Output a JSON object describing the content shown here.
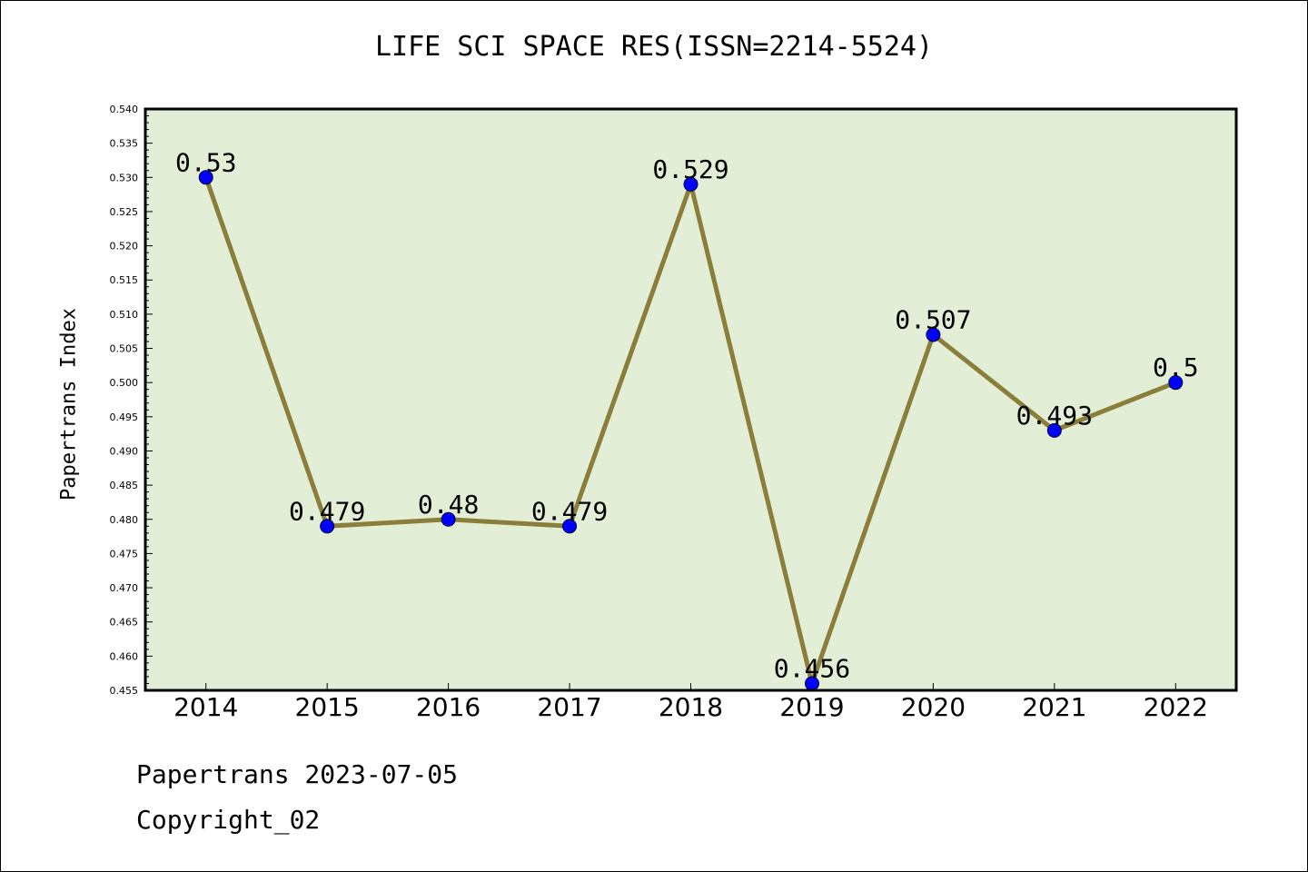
{
  "chart_data": {
    "type": "line",
    "title": "LIFE SCI SPACE RES(ISSN=2214-5524)",
    "xlabel": "",
    "ylabel": "Papertrans Index",
    "categories": [
      "2014",
      "2015",
      "2016",
      "2017",
      "2018",
      "2019",
      "2020",
      "2021",
      "2022"
    ],
    "series": [
      {
        "values": [
          0.53,
          0.479,
          0.48,
          0.479,
          0.529,
          0.456,
          0.507,
          0.493,
          0.5
        ],
        "labels": [
          "0.53",
          "0.479",
          "0.48",
          "0.479",
          "0.529",
          "0.456",
          "0.507",
          "0.493",
          "0.5"
        ]
      }
    ],
    "ylim": [
      0.455,
      0.54
    ],
    "yticks": [
      "0.455",
      "0.460",
      "0.465",
      "0.470",
      "0.475",
      "0.480",
      "0.485",
      "0.490",
      "0.495",
      "0.500",
      "0.505",
      "0.510",
      "0.515",
      "0.520",
      "0.525",
      "0.530",
      "0.535",
      "0.540"
    ],
    "grid": false,
    "colors": {
      "plot_background": "#e2efd6",
      "line": "#8b7d3a",
      "marker": "#0000ff"
    }
  },
  "footer": {
    "line1": "Papertrans 2023-07-05",
    "line2": "Copyright_02"
  }
}
